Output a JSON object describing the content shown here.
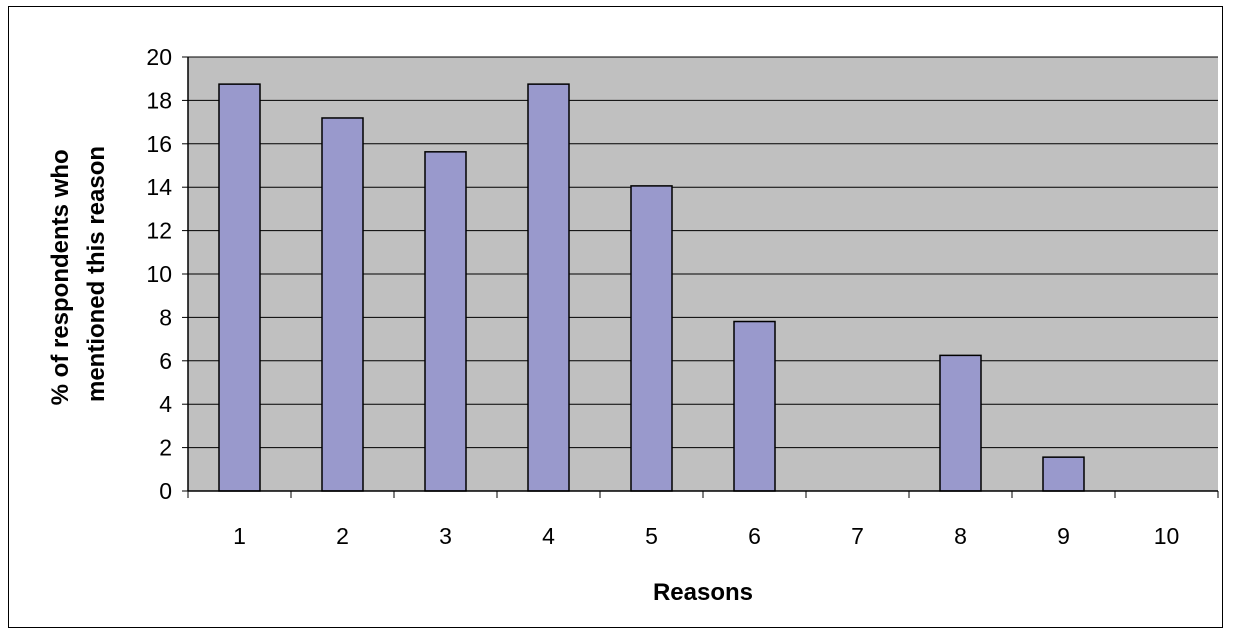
{
  "chart_data": {
    "type": "bar",
    "categories": [
      "1",
      "2",
      "3",
      "4",
      "5",
      "6",
      "7",
      "8",
      "9",
      "10"
    ],
    "values": [
      18.75,
      17.19,
      15.63,
      18.75,
      14.06,
      7.81,
      0,
      6.25,
      1.56,
      0
    ],
    "xlabel": "Reasons",
    "ylabel_lines": [
      "% of respondents who",
      "mentioned this reason"
    ],
    "ylim": [
      0,
      20
    ],
    "yticks": [
      0,
      2,
      4,
      6,
      8,
      10,
      12,
      14,
      16,
      18,
      20
    ],
    "grid": true,
    "legend": "none",
    "colors": {
      "plot_background": "#c0c0c0",
      "bar_fill": "#9999cc",
      "bar_stroke": "#000000",
      "gridline": "#000000"
    }
  }
}
